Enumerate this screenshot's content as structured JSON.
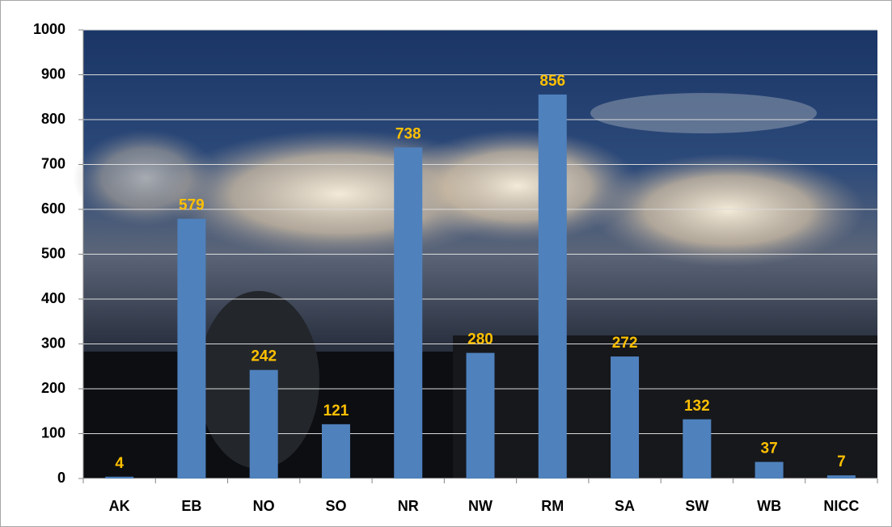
{
  "chart_data": {
    "type": "bar",
    "categories": [
      "AK",
      "EB",
      "NO",
      "SO",
      "NR",
      "NW",
      "RM",
      "SA",
      "SW",
      "WB",
      "NICC"
    ],
    "values": [
      4,
      579,
      242,
      121,
      738,
      280,
      856,
      272,
      132,
      37,
      7
    ],
    "color": "#4f81bd",
    "label_color": "#ffc000",
    "ylim": [
      0,
      1000
    ],
    "yticks": [
      0,
      100,
      200,
      300,
      400,
      500,
      600,
      700,
      800,
      900,
      1000
    ],
    "grid": true
  }
}
